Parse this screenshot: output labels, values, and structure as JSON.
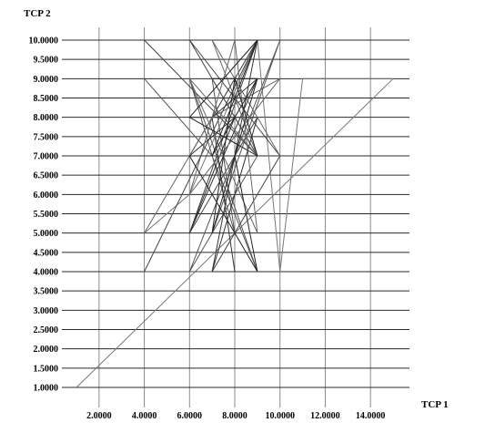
{
  "chart_data": {
    "type": "line",
    "xlabel": "TCP 1",
    "ylabel": "TCP 2",
    "xlim": [
      1.0,
      15.0
    ],
    "ylim": [
      1.0,
      10.0
    ],
    "x_ticks": [
      2.0,
      4.0,
      6.0,
      8.0,
      10.0,
      12.0,
      14.0
    ],
    "x_tick_labels": [
      "2.0000",
      "4.0000",
      "6.0000",
      "8.0000",
      "10.0000",
      "12.0000",
      "14.0000"
    ],
    "y_ticks": [
      1.0,
      1.5,
      2.0,
      2.5,
      3.0,
      3.5,
      4.0,
      4.5,
      5.0,
      5.5,
      6.0,
      6.5,
      7.0,
      7.5,
      8.0,
      8.5,
      9.0,
      9.5,
      10.0
    ],
    "y_tick_labels": [
      "1.0000",
      "1.5000",
      "2.0000",
      "2.5000",
      "3.0000",
      "3.5000",
      "4.0000",
      "4.5000",
      "5.0000",
      "5.5000",
      "6.0000",
      "6.5000",
      "7.0000",
      "7.5000",
      "8.0000",
      "8.5000",
      "9.0000",
      "9.5000",
      "10.0000"
    ],
    "grid": true,
    "series": [
      {
        "x": [
          1,
          15,
          11,
          10,
          9,
          6,
          4
        ],
        "y": [
          1,
          9,
          9,
          4,
          10,
          6,
          5
        ],
        "color": "#777777"
      },
      {
        "x": [
          4,
          9,
          6,
          10,
          7,
          4,
          9,
          6,
          9
        ],
        "y": [
          10,
          7,
          10,
          7,
          4,
          4,
          10,
          5,
          8
        ],
        "color": "#444444"
      },
      {
        "x": [
          4,
          7,
          9,
          6,
          8,
          7,
          9,
          6,
          10,
          7
        ],
        "y": [
          9,
          7,
          4,
          9,
          5,
          9,
          7,
          4,
          10,
          5
        ],
        "color": "#555555"
      },
      {
        "x": [
          6,
          9,
          7,
          9,
          6,
          8,
          6,
          9,
          7,
          8
        ],
        "y": [
          8,
          8,
          4,
          10,
          7,
          8,
          5,
          9,
          8,
          4
        ],
        "color": "#333333"
      },
      {
        "x": [
          4,
          7,
          10,
          6,
          8,
          9,
          6,
          9,
          7,
          10
        ],
        "y": [
          5,
          8,
          9,
          6,
          10,
          5,
          9,
          7,
          10,
          7
        ],
        "color": "#666666"
      },
      {
        "x": [
          7,
          9,
          7,
          6,
          9,
          8,
          9,
          7,
          8,
          9,
          6,
          9,
          7
        ],
        "y": [
          9,
          9,
          7,
          7,
          4,
          7,
          9,
          5,
          9,
          7,
          8,
          10,
          7
        ],
        "color": "#222222"
      }
    ]
  }
}
